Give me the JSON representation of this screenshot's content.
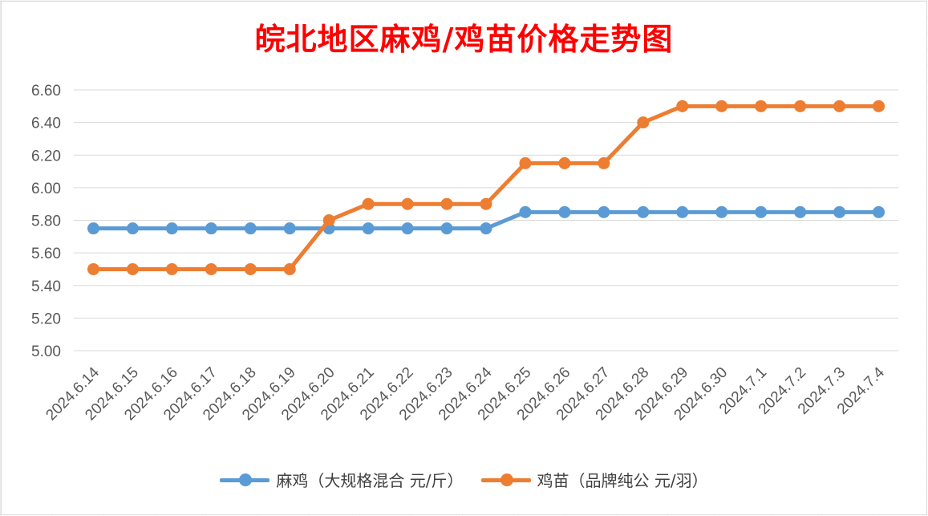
{
  "chart_data": {
    "type": "line",
    "title": "皖北地区麻鸡/鸡苗价格走势图",
    "categories": [
      "2024.6.14",
      "2024.6.15",
      "2024.6.16",
      "2024.6.17",
      "2024.6.18",
      "2024.6.19",
      "2024.6.20",
      "2024.6.21",
      "2024.6.22",
      "2024.6.23",
      "2024.6.24",
      "2024.6.25",
      "2024.6.26",
      "2024.6.27",
      "2024.6.28",
      "2024.6.29",
      "2024.6.30",
      "2024.7.1",
      "2024.7.2",
      "2024.7.3",
      "2024.7.4"
    ],
    "series": [
      {
        "name": "麻鸡（大规格混合 元/斤）",
        "color": "#5b9bd5",
        "values": [
          5.75,
          5.75,
          5.75,
          5.75,
          5.75,
          5.75,
          5.75,
          5.75,
          5.75,
          5.75,
          5.75,
          5.85,
          5.85,
          5.85,
          5.85,
          5.85,
          5.85,
          5.85,
          5.85,
          5.85,
          5.85
        ]
      },
      {
        "name": "鸡苗（品牌纯公 元/羽）",
        "color": "#ed7d31",
        "values": [
          5.5,
          5.5,
          5.5,
          5.5,
          5.5,
          5.5,
          5.8,
          5.9,
          5.9,
          5.9,
          5.9,
          6.15,
          6.15,
          6.15,
          6.4,
          6.5,
          6.5,
          6.5,
          6.5,
          6.5,
          6.5
        ]
      }
    ],
    "yticks": [
      "5.00",
      "5.20",
      "5.40",
      "5.60",
      "5.80",
      "6.00",
      "6.20",
      "6.40",
      "6.60"
    ],
    "ylim": [
      5.0,
      6.6
    ],
    "grid": true,
    "legend": "bottom"
  }
}
